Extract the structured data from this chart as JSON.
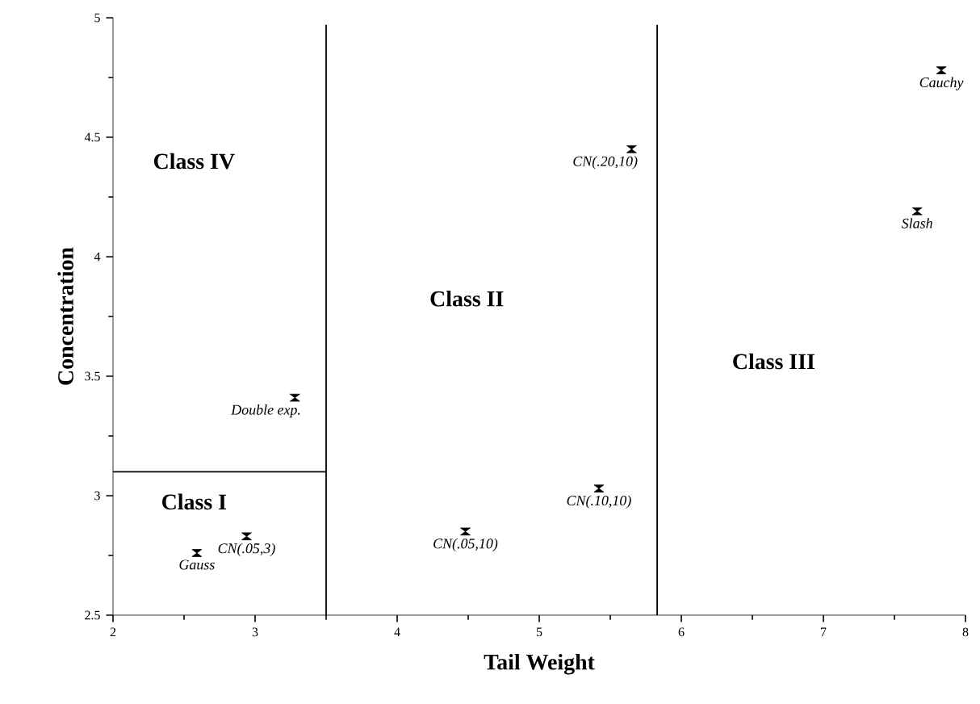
{
  "chart_data": {
    "type": "scatter",
    "xlabel": "Tail Weight",
    "ylabel": "Concentration",
    "xlim": [
      2,
      8
    ],
    "ylim": [
      2.5,
      5
    ],
    "xticks": [
      2,
      3,
      4,
      5,
      6,
      7,
      8
    ],
    "yticks": [
      2.5,
      3,
      3.5,
      4,
      4.5,
      5
    ],
    "marker": "diamond",
    "grid": false,
    "series": [
      {
        "name": "Gauss",
        "color": "#000000",
        "x": [
          2.59
        ],
        "values": [
          2.76
        ]
      },
      {
        "name": "CN(.05,3)",
        "color": "#000000",
        "x": [
          2.94
        ],
        "values": [
          2.83
        ]
      },
      {
        "name": "Double exp.",
        "color": "#000000",
        "x": [
          3.28
        ],
        "values": [
          3.41
        ]
      },
      {
        "name": "CN(.05,10)",
        "color": "#000000",
        "x": [
          4.48
        ],
        "values": [
          2.85
        ]
      },
      {
        "name": "CN(.10,10)",
        "color": "#000000",
        "x": [
          5.42
        ],
        "values": [
          3.03
        ]
      },
      {
        "name": "CN(.20,10)",
        "color": "#000000",
        "x": [
          5.65
        ],
        "values": [
          4.45
        ]
      },
      {
        "name": "Cauchy",
        "color": "#000000",
        "x": [
          7.83
        ],
        "values": [
          4.78
        ]
      },
      {
        "name": "Slash",
        "color": "#000000",
        "x": [
          7.66
        ],
        "values": [
          4.19
        ]
      },
      {
        "type": "line",
        "marker": "none",
        "color": "#000000",
        "x": [
          2,
          3.5
        ],
        "values": [
          3.1,
          3.1
        ]
      },
      {
        "type": "line",
        "marker": "none",
        "color": "#000000",
        "x": [
          3.5,
          3.5
        ],
        "values": [
          2.5,
          4.97
        ]
      },
      {
        "type": "line",
        "marker": "none",
        "color": "#000000",
        "x": [
          5.83,
          5.83
        ],
        "values": [
          2.5,
          4.97
        ]
      }
    ],
    "annotations": [
      "Class IV",
      "Class I",
      "Class II",
      "Class III"
    ]
  }
}
